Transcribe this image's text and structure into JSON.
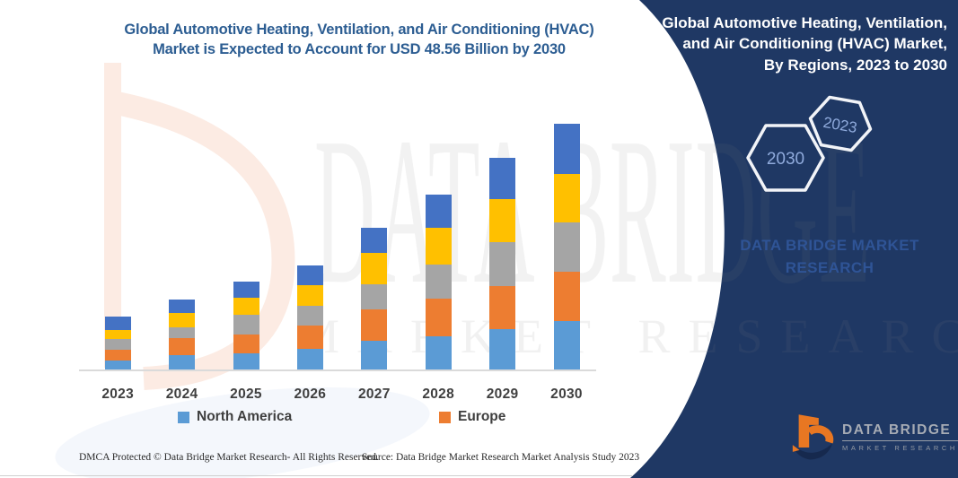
{
  "left_chart": {
    "title_line1": "Global Automotive Heating, Ventilation, and Air Conditioning (HVAC)",
    "title_line2": "Market is Expected to Account for USD 48.56 Billion by 2030"
  },
  "right_panel": {
    "title": "Global Automotive Heating, Ventilation, and Air Conditioning (HVAC) Market, By Regions, 2023 to 2030",
    "hexagons": [
      {
        "label": "2030"
      },
      {
        "label": "2023"
      }
    ],
    "brand_text": "DATA BRIDGE MARKET RESEARCH",
    "logo": {
      "name": "DATA BRIDGE",
      "subname": "MARKET RESEARCH"
    }
  },
  "watermark": {
    "line1": "DATA BRIDGE",
    "line2": "MARKET RESEARCH"
  },
  "legend": [
    {
      "label": "North America",
      "color": "#5B9BD5"
    },
    {
      "label": "Europe",
      "color": "#ED7D31"
    }
  ],
  "footer": {
    "dmca": "DMCA Protected © Data Bridge Market Research-  All Rights Reserved.",
    "source": "Source: Data Bridge Market Research  Market Analysis Study 2023"
  },
  "chart_data": {
    "type": "bar",
    "subtype": "stacked-vertical",
    "categories": [
      "2023",
      "2024",
      "2025",
      "2026",
      "2027",
      "2028",
      "2029",
      "2030"
    ],
    "values_unit": "USD billion (estimated from bar heights; anchor: 2030 total = 48.56 from title)",
    "series": [
      {
        "name": "North America",
        "color": "#5B9BD5",
        "in_legend": true,
        "values": [
          1.8,
          2.8,
          3.2,
          4.0,
          5.6,
          6.5,
          8.0,
          9.6
        ]
      },
      {
        "name": "Europe",
        "color": "#ED7D31",
        "in_legend": true,
        "values": [
          2.1,
          3.4,
          3.7,
          4.7,
          6.2,
          7.4,
          8.4,
          9.7
        ]
      },
      {
        "name": "",
        "color": "#A5A5A5",
        "in_legend": false,
        "values": [
          2.1,
          2.2,
          3.9,
          3.8,
          5.0,
          6.8,
          8.7,
          9.7
        ]
      },
      {
        "name": "",
        "color": "#FFC000",
        "in_legend": false,
        "values": [
          1.8,
          2.8,
          3.3,
          4.1,
          6.2,
          7.3,
          8.6,
          9.6
        ]
      },
      {
        "name": "",
        "color": "#4472C4",
        "in_legend": false,
        "values": [
          2.7,
          2.7,
          3.2,
          3.9,
          5.0,
          6.6,
          8.1,
          9.9
        ]
      }
    ],
    "totals": [
      10.5,
      13.9,
      17.3,
      20.5,
      28.0,
      34.6,
      41.8,
      48.5
    ],
    "gridlines": false,
    "axis_labels": "none (years only along x-axis)",
    "legend_position": "bottom"
  },
  "colors": {
    "panel_navy": "#1F3864",
    "title_blue": "#2C5D92",
    "hexagon_label": "#8FAADC",
    "brand_blue": "#2F5496",
    "logo_orange": "#E87722",
    "logo_navy": "#16294E",
    "axis_line": "#DADADA",
    "year_label": "#3F3F3F"
  }
}
